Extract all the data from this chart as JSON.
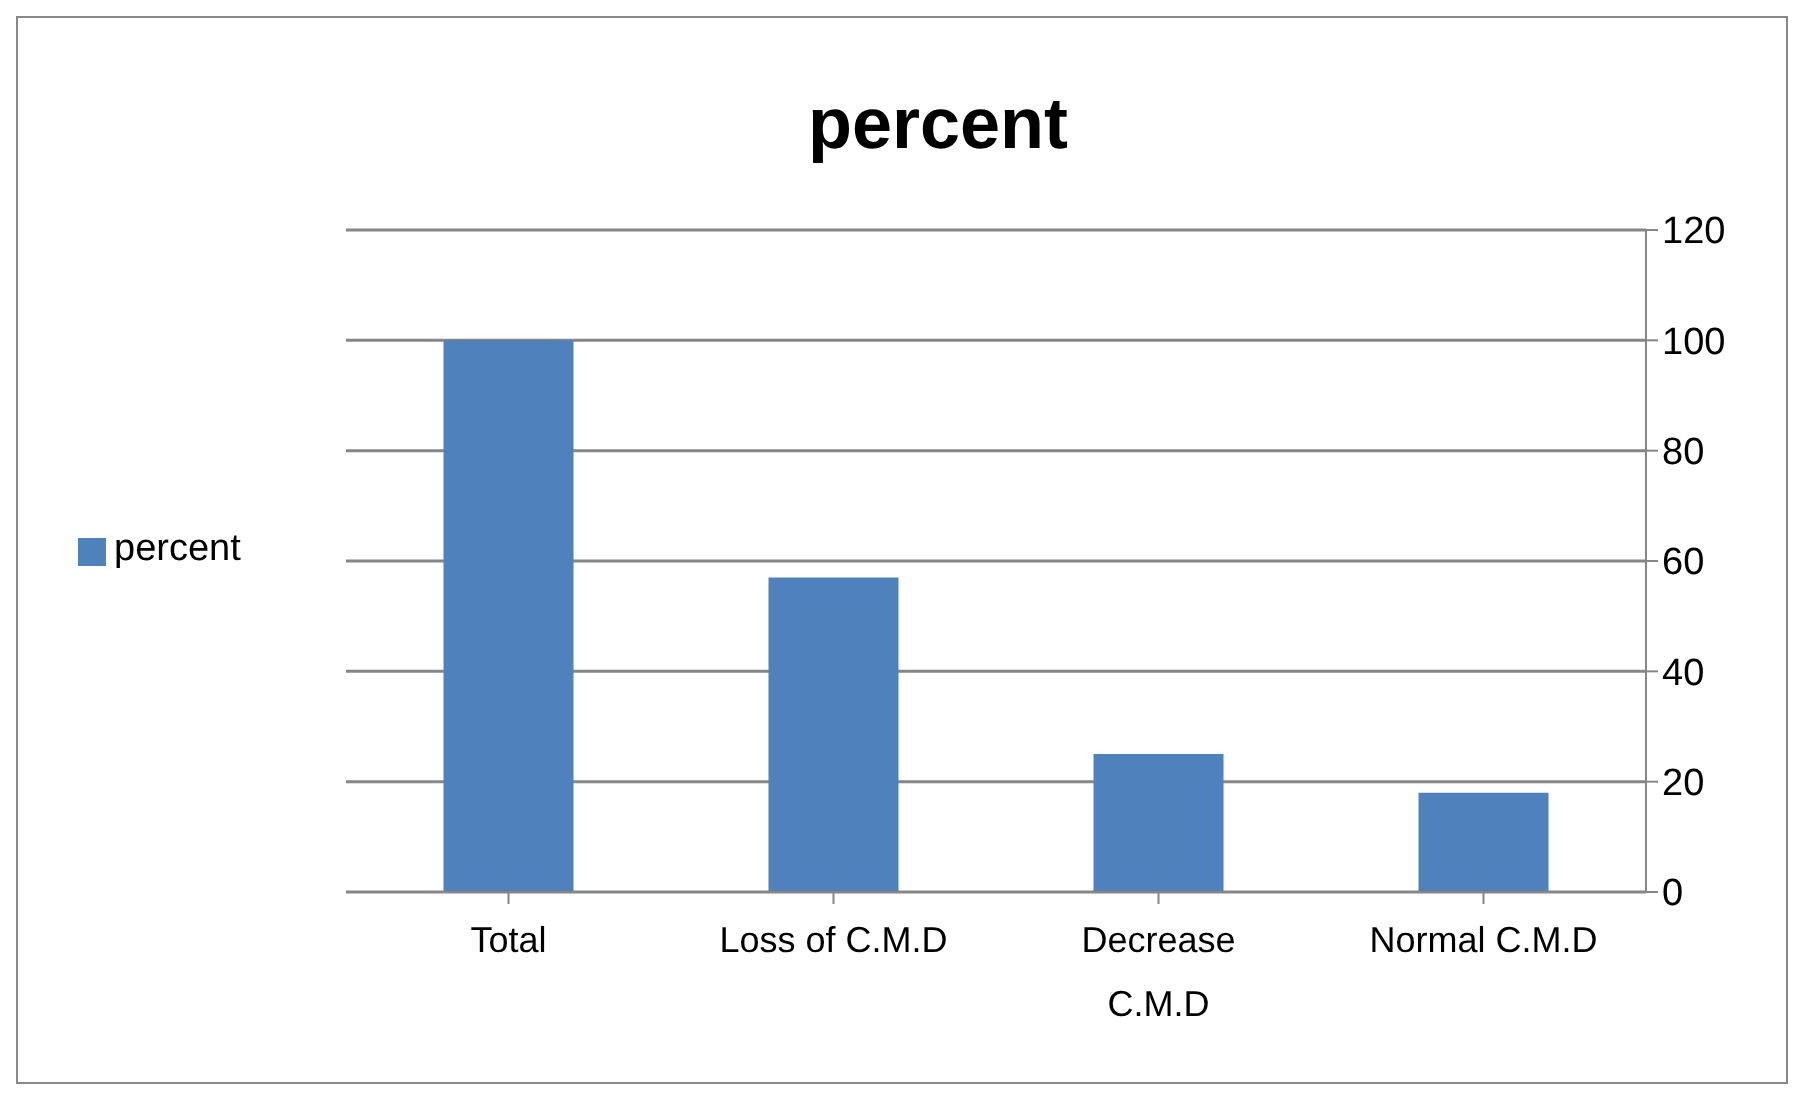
{
  "chart_data": {
    "type": "bar",
    "title": "percent",
    "categories": [
      "Total",
      "Loss of C.M.D",
      "Decrease C.M.D",
      "Normal C.M.D"
    ],
    "series": [
      {
        "name": "percent",
        "color": "#4f81bd",
        "values": [
          100,
          57,
          25,
          18
        ]
      }
    ],
    "ylim": [
      0,
      120
    ],
    "yticks": [
      0,
      20,
      40,
      60,
      80,
      100,
      120
    ],
    "grid": "y",
    "legend": "left"
  }
}
